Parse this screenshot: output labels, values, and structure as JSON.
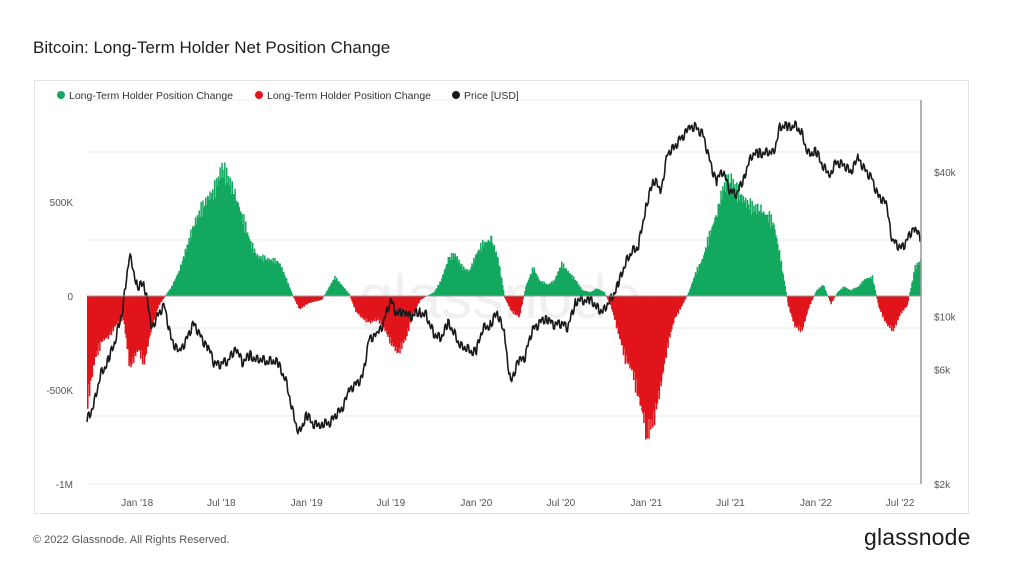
{
  "header": {
    "title": "Bitcoin: Long-Term Holder Net Position Change"
  },
  "footer": {
    "copyright": "© 2022 Glassnode. All Rights Reserved.",
    "brand": "glassnode"
  },
  "watermark": "glassnode",
  "colors": {
    "positive": "#13a85f",
    "negative": "#e0141b",
    "price": "#1a1a1a",
    "grid": "#ebebeb",
    "zero": "#9a9a9a"
  },
  "chart_data": {
    "type": "area",
    "title": "Bitcoin: Long-Term Holder Net Position Change",
    "legend_placement": "top-left",
    "legend": [
      {
        "label": "Long-Term Holder Position Change",
        "color": "#13a85f"
      },
      {
        "label": "Long-Term Holder Position Change",
        "color": "#e0141b"
      },
      {
        "label": "Price [USD]",
        "color": "#1a1a1a"
      }
    ],
    "x_ticks": [
      "Jan '18",
      "Jul '18",
      "Jan '19",
      "Jul '19",
      "Jan '20",
      "Jul '20",
      "Jan '21",
      "Jul '21",
      "Jan '22",
      "Jul '22"
    ],
    "x_range": [
      "2017-09-15",
      "2022-08-15"
    ],
    "y_left": {
      "ticks": [
        "-1M",
        "-500K",
        "0",
        "500K"
      ],
      "range": [
        -1000000,
        1000000
      ]
    },
    "y_right": {
      "scale": "log",
      "ticks": [
        "$2k",
        "$6k",
        "$10k",
        "$40k"
      ],
      "range": [
        2000,
        80000
      ]
    },
    "grid": true,
    "series": [
      {
        "name": "Long-Term Holder Position Change",
        "axis": "left",
        "points": [
          [
            "2017-09-15",
            -550000
          ],
          [
            "2017-10-01",
            -330000
          ],
          [
            "2017-10-15",
            -240000
          ],
          [
            "2017-11-01",
            -210000
          ],
          [
            "2017-11-15",
            -150000
          ],
          [
            "2017-12-01",
            -120000
          ],
          [
            "2017-12-15",
            -380000
          ],
          [
            "2018-01-01",
            -280000
          ],
          [
            "2018-01-15",
            -350000
          ],
          [
            "2018-02-01",
            -150000
          ],
          [
            "2018-02-15",
            -50000
          ],
          [
            "2018-03-01",
            0
          ],
          [
            "2018-03-15",
            50000
          ],
          [
            "2018-04-01",
            140000
          ],
          [
            "2018-04-15",
            250000
          ],
          [
            "2018-05-01",
            370000
          ],
          [
            "2018-05-15",
            450000
          ],
          [
            "2018-06-01",
            520000
          ],
          [
            "2018-06-15",
            560000
          ],
          [
            "2018-07-01",
            680000
          ],
          [
            "2018-07-15",
            620000
          ],
          [
            "2018-08-01",
            520000
          ],
          [
            "2018-08-15",
            410000
          ],
          [
            "2018-09-01",
            280000
          ],
          [
            "2018-09-15",
            210000
          ],
          [
            "2018-10-01",
            200000
          ],
          [
            "2018-10-15",
            190000
          ],
          [
            "2018-11-01",
            180000
          ],
          [
            "2018-11-15",
            100000
          ],
          [
            "2018-12-01",
            0
          ],
          [
            "2018-12-15",
            -70000
          ],
          [
            "2019-01-01",
            -40000
          ],
          [
            "2019-01-15",
            -30000
          ],
          [
            "2019-02-01",
            -20000
          ],
          [
            "2019-02-15",
            40000
          ],
          [
            "2019-03-01",
            100000
          ],
          [
            "2019-03-15",
            60000
          ],
          [
            "2019-04-01",
            10000
          ],
          [
            "2019-04-15",
            -80000
          ],
          [
            "2019-05-01",
            -120000
          ],
          [
            "2019-05-15",
            -140000
          ],
          [
            "2019-06-01",
            -120000
          ],
          [
            "2019-06-15",
            -170000
          ],
          [
            "2019-07-01",
            -250000
          ],
          [
            "2019-07-15",
            -300000
          ],
          [
            "2019-08-01",
            -220000
          ],
          [
            "2019-08-15",
            -100000
          ],
          [
            "2019-09-01",
            -20000
          ],
          [
            "2019-09-15",
            0
          ],
          [
            "2019-10-01",
            20000
          ],
          [
            "2019-10-15",
            80000
          ],
          [
            "2019-11-01",
            200000
          ],
          [
            "2019-11-15",
            220000
          ],
          [
            "2019-12-01",
            150000
          ],
          [
            "2019-12-15",
            130000
          ],
          [
            "2020-01-01",
            230000
          ],
          [
            "2020-01-15",
            280000
          ],
          [
            "2020-02-01",
            300000
          ],
          [
            "2020-02-15",
            200000
          ],
          [
            "2020-03-01",
            -10000
          ],
          [
            "2020-03-15",
            -80000
          ],
          [
            "2020-04-01",
            -110000
          ],
          [
            "2020-04-15",
            50000
          ],
          [
            "2020-05-01",
            150000
          ],
          [
            "2020-05-15",
            80000
          ],
          [
            "2020-06-01",
            60000
          ],
          [
            "2020-06-15",
            80000
          ],
          [
            "2020-07-01",
            170000
          ],
          [
            "2020-07-15",
            130000
          ],
          [
            "2020-08-01",
            80000
          ],
          [
            "2020-08-15",
            30000
          ],
          [
            "2020-09-01",
            20000
          ],
          [
            "2020-09-15",
            40000
          ],
          [
            "2020-10-01",
            20000
          ],
          [
            "2020-10-15",
            -50000
          ],
          [
            "2020-11-01",
            -200000
          ],
          [
            "2020-11-15",
            -330000
          ],
          [
            "2020-12-01",
            -400000
          ],
          [
            "2020-12-15",
            -550000
          ],
          [
            "2021-01-01",
            -720000
          ],
          [
            "2021-01-15",
            -660000
          ],
          [
            "2021-02-01",
            -450000
          ],
          [
            "2021-02-15",
            -250000
          ],
          [
            "2021-03-01",
            -120000
          ],
          [
            "2021-03-15",
            -60000
          ],
          [
            "2021-04-01",
            20000
          ],
          [
            "2021-04-15",
            120000
          ],
          [
            "2021-05-01",
            200000
          ],
          [
            "2021-05-15",
            320000
          ],
          [
            "2021-06-01",
            450000
          ],
          [
            "2021-06-15",
            580000
          ],
          [
            "2021-07-01",
            620000
          ],
          [
            "2021-07-15",
            550000
          ],
          [
            "2021-08-01",
            500000
          ],
          [
            "2021-08-15",
            470000
          ],
          [
            "2021-09-01",
            460000
          ],
          [
            "2021-09-15",
            430000
          ],
          [
            "2021-10-01",
            380000
          ],
          [
            "2021-10-15",
            200000
          ],
          [
            "2021-11-01",
            -50000
          ],
          [
            "2021-11-15",
            -160000
          ],
          [
            "2021-12-01",
            -180000
          ],
          [
            "2021-12-15",
            -60000
          ],
          [
            "2022-01-01",
            30000
          ],
          [
            "2022-01-15",
            60000
          ],
          [
            "2022-02-01",
            -40000
          ],
          [
            "2022-02-15",
            20000
          ],
          [
            "2022-03-01",
            50000
          ],
          [
            "2022-03-15",
            30000
          ],
          [
            "2022-04-01",
            50000
          ],
          [
            "2022-04-15",
            90000
          ],
          [
            "2022-05-01",
            100000
          ],
          [
            "2022-05-15",
            -60000
          ],
          [
            "2022-06-01",
            -150000
          ],
          [
            "2022-06-15",
            -180000
          ],
          [
            "2022-07-01",
            -90000
          ],
          [
            "2022-07-15",
            -50000
          ],
          [
            "2022-08-01",
            150000
          ],
          [
            "2022-08-15",
            200000
          ]
        ]
      },
      {
        "name": "Price [USD]",
        "axis": "right",
        "points": [
          [
            "2017-09-15",
            3700
          ],
          [
            "2017-10-01",
            4400
          ],
          [
            "2017-10-15",
            5700
          ],
          [
            "2017-11-01",
            6700
          ],
          [
            "2017-11-15",
            7800
          ],
          [
            "2017-12-01",
            10900
          ],
          [
            "2017-12-15",
            17800
          ],
          [
            "2018-01-01",
            13500
          ],
          [
            "2018-01-15",
            13700
          ],
          [
            "2018-02-01",
            9100
          ],
          [
            "2018-02-15",
            10200
          ],
          [
            "2018-03-01",
            10900
          ],
          [
            "2018-03-15",
            8200
          ],
          [
            "2018-04-01",
            6900
          ],
          [
            "2018-04-15",
            8000
          ],
          [
            "2018-05-01",
            9200
          ],
          [
            "2018-05-15",
            8500
          ],
          [
            "2018-06-01",
            7500
          ],
          [
            "2018-06-15",
            6400
          ],
          [
            "2018-07-01",
            6400
          ],
          [
            "2018-07-15",
            6400
          ],
          [
            "2018-08-01",
            7600
          ],
          [
            "2018-08-15",
            6300
          ],
          [
            "2018-09-01",
            7000
          ],
          [
            "2018-09-15",
            6500
          ],
          [
            "2018-10-01",
            6600
          ],
          [
            "2018-10-15",
            6500
          ],
          [
            "2018-11-01",
            6300
          ],
          [
            "2018-11-15",
            5600
          ],
          [
            "2018-12-01",
            4000
          ],
          [
            "2018-12-15",
            3300
          ],
          [
            "2019-01-01",
            3800
          ],
          [
            "2019-01-15",
            3600
          ],
          [
            "2019-02-01",
            3500
          ],
          [
            "2019-02-15",
            3600
          ],
          [
            "2019-03-01",
            3800
          ],
          [
            "2019-03-15",
            4000
          ],
          [
            "2019-04-01",
            4900
          ],
          [
            "2019-04-15",
            5100
          ],
          [
            "2019-05-01",
            5700
          ],
          [
            "2019-05-15",
            7900
          ],
          [
            "2019-06-01",
            8500
          ],
          [
            "2019-06-15",
            9300
          ],
          [
            "2019-07-01",
            11800
          ],
          [
            "2019-07-15",
            10200
          ],
          [
            "2019-08-01",
            10400
          ],
          [
            "2019-08-15",
            10100
          ],
          [
            "2019-09-01",
            10300
          ],
          [
            "2019-09-15",
            10300
          ],
          [
            "2019-10-01",
            8300
          ],
          [
            "2019-10-15",
            8200
          ],
          [
            "2019-11-01",
            9200
          ],
          [
            "2019-11-15",
            8500
          ],
          [
            "2019-12-01",
            7400
          ],
          [
            "2019-12-15",
            7200
          ],
          [
            "2020-01-01",
            7200
          ],
          [
            "2020-01-15",
            8800
          ],
          [
            "2020-02-01",
            9400
          ],
          [
            "2020-02-15",
            10200
          ],
          [
            "2020-03-01",
            8600
          ],
          [
            "2020-03-15",
            5200
          ],
          [
            "2020-04-01",
            6600
          ],
          [
            "2020-04-15",
            6800
          ],
          [
            "2020-05-01",
            8800
          ],
          [
            "2020-05-15",
            9500
          ],
          [
            "2020-06-01",
            9700
          ],
          [
            "2020-06-15",
            9400
          ],
          [
            "2020-07-01",
            9200
          ],
          [
            "2020-07-15",
            9100
          ],
          [
            "2020-08-01",
            11300
          ],
          [
            "2020-08-15",
            11800
          ],
          [
            "2020-09-01",
            11700
          ],
          [
            "2020-09-15",
            10900
          ],
          [
            "2020-10-01",
            10600
          ],
          [
            "2020-10-15",
            11500
          ],
          [
            "2020-11-01",
            13700
          ],
          [
            "2020-11-15",
            16000
          ],
          [
            "2020-12-01",
            19000
          ],
          [
            "2020-12-15",
            19400
          ],
          [
            "2021-01-01",
            29300
          ],
          [
            "2021-01-15",
            36800
          ],
          [
            "2021-02-01",
            33500
          ],
          [
            "2021-02-15",
            47900
          ],
          [
            "2021-03-01",
            49600
          ],
          [
            "2021-03-15",
            56000
          ],
          [
            "2021-04-01",
            59000
          ],
          [
            "2021-04-15",
            63000
          ],
          [
            "2021-05-01",
            57800
          ],
          [
            "2021-05-15",
            46400
          ],
          [
            "2021-06-01",
            36700
          ],
          [
            "2021-06-15",
            40100
          ],
          [
            "2021-07-01",
            33500
          ],
          [
            "2021-07-15",
            31800
          ],
          [
            "2021-08-01",
            39900
          ],
          [
            "2021-08-15",
            46000
          ],
          [
            "2021-09-01",
            48800
          ],
          [
            "2021-09-15",
            47700
          ],
          [
            "2021-10-01",
            48100
          ],
          [
            "2021-10-15",
            61500
          ],
          [
            "2021-11-01",
            61000
          ],
          [
            "2021-11-15",
            63600
          ],
          [
            "2021-12-01",
            57200
          ],
          [
            "2021-12-15",
            48400
          ],
          [
            "2022-01-01",
            47700
          ],
          [
            "2022-01-15",
            43100
          ],
          [
            "2022-02-01",
            38700
          ],
          [
            "2022-02-15",
            44500
          ],
          [
            "2022-03-01",
            43200
          ],
          [
            "2022-03-15",
            39300
          ],
          [
            "2022-04-01",
            46300
          ],
          [
            "2022-04-15",
            40500
          ],
          [
            "2022-05-01",
            38400
          ],
          [
            "2022-05-15",
            31300
          ],
          [
            "2022-06-01",
            29800
          ],
          [
            "2022-06-15",
            20400
          ],
          [
            "2022-07-01",
            19300
          ],
          [
            "2022-07-15",
            20800
          ],
          [
            "2022-08-01",
            23300
          ],
          [
            "2022-08-15",
            21500
          ]
        ]
      }
    ]
  }
}
